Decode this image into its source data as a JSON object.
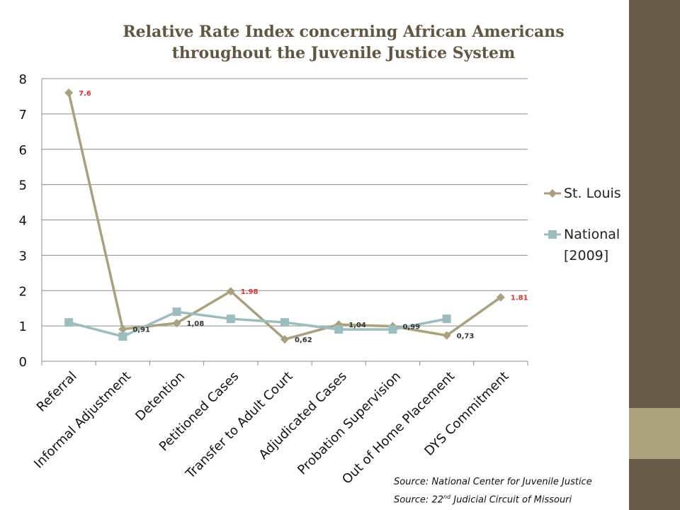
{
  "chart_data": {
    "type": "line",
    "title": "Relative Rate Index concerning African Americans throughout the Juvenile Justice System",
    "title_lines": [
      "Relative Rate Index concerning African Americans",
      "throughout the Juvenile Justice System"
    ],
    "categories": [
      "Referral",
      "Informal Adjustment",
      "Detention",
      "Petitioned Cases",
      "Transfer to Adult Court",
      "Adjudicated Cases",
      "Probation Supervision",
      "Out of Home Placement",
      "DYS Commitment"
    ],
    "yticks": [
      "0",
      "1",
      "2",
      "3",
      "4",
      "5",
      "6",
      "7",
      "8"
    ],
    "ylim": [
      0,
      8
    ],
    "grid": true,
    "legend_position": "right",
    "series": [
      {
        "name": "St. Louis",
        "color": "#a9a17b",
        "marker": "diamond",
        "values": [
          7.6,
          0.91,
          1.08,
          1.98,
          0.62,
          1.04,
          0.99,
          0.73,
          1.81
        ],
        "labels": [
          "7.6",
          "0,91",
          "1,08",
          "1.98",
          "0,62",
          "1,04",
          "0,99",
          "0,73",
          "1.81"
        ],
        "label_colors": [
          "#e03030",
          "#333333",
          "#333333",
          "#e03030",
          "#333333",
          "#333333",
          "#333333",
          "#333333",
          "#e03030"
        ]
      },
      {
        "name": "National [2009]",
        "color": "#9bbdbe",
        "marker": "square",
        "values": [
          1.1,
          0.7,
          1.4,
          1.2,
          1.1,
          0.9,
          0.9,
          1.2,
          null
        ]
      }
    ]
  },
  "legend": {
    "st_louis": "St. Louis",
    "national_line1": "National",
    "national_line2": "[2009]"
  },
  "sources": {
    "line1": "Source: National Center for Juvenile Justice",
    "line2_pre": "Source: 22",
    "line2_sup": "nd",
    "line2_post": " Judicial Circuit of Missouri"
  }
}
